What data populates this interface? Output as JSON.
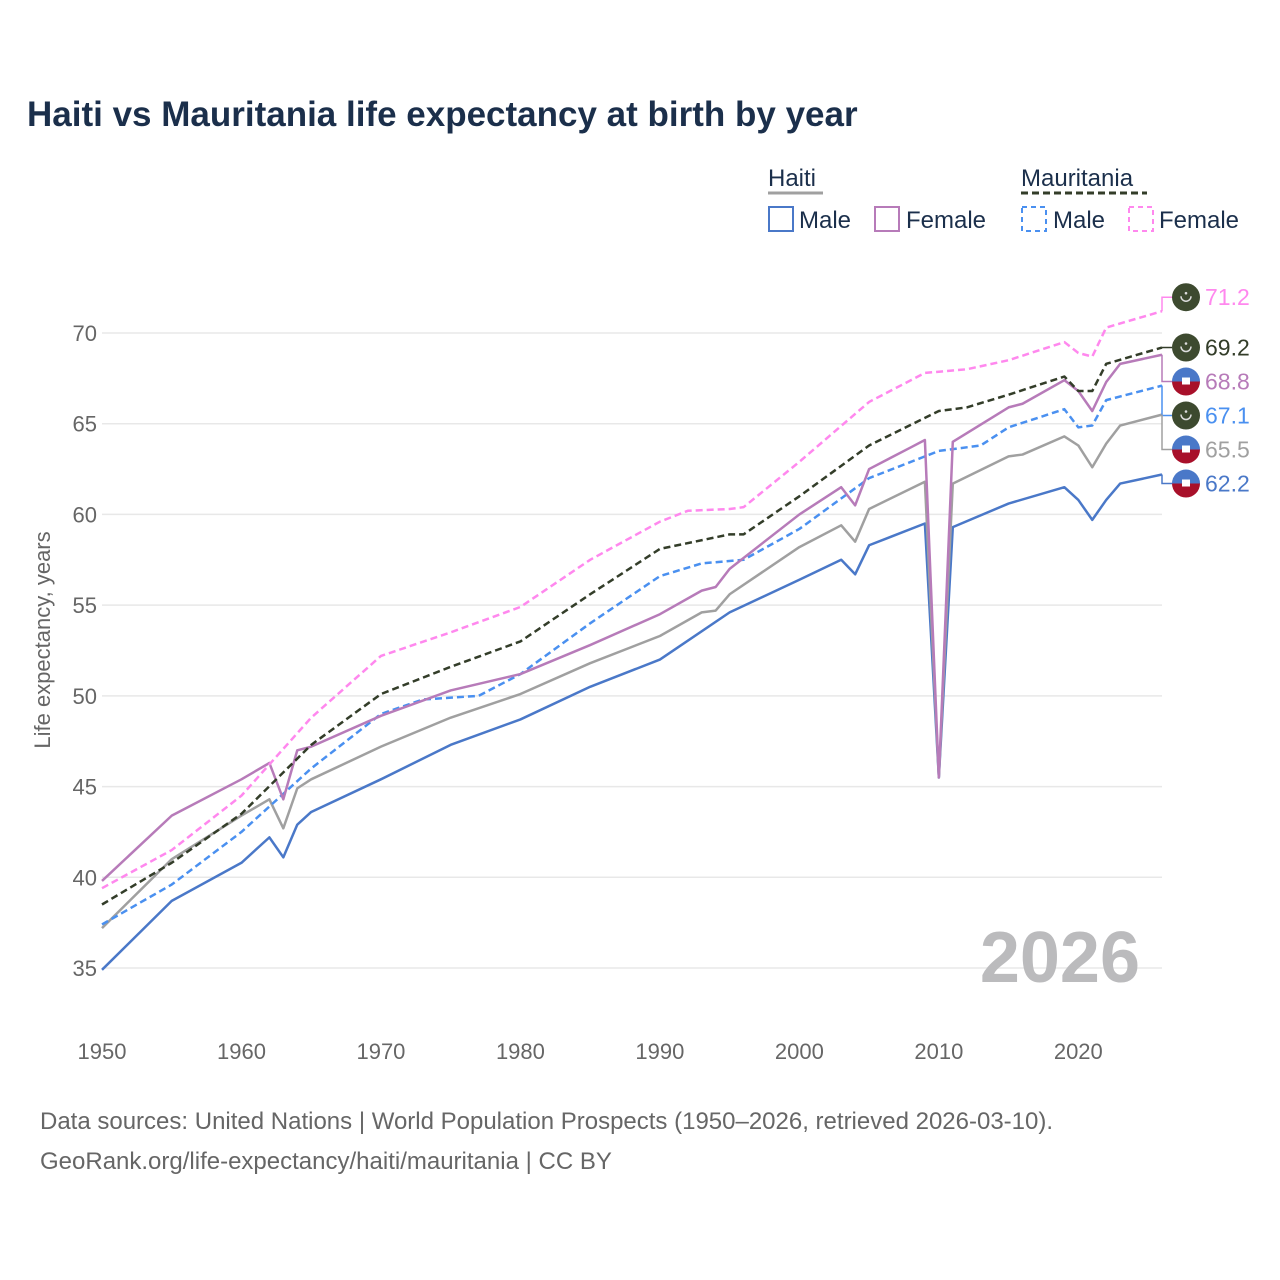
{
  "title": "Haiti vs Mauritania life expectancy at birth by year",
  "sources": [
    "Data sources: United Nations | World Population Prospects (1950–2026, retrieved 2026-03-10).",
    "GeoRank.org/life-expectancy/haiti/mauritania | CC BY"
  ],
  "year_label": "2026",
  "legend": {
    "groups": [
      {
        "name": "Haiti",
        "items": [
          "Male",
          "Female"
        ]
      },
      {
        "name": "Mauritania",
        "items": [
          "Male",
          "Female"
        ]
      }
    ]
  },
  "chart_data": {
    "type": "line",
    "title": "Haiti vs Mauritania life expectancy at birth by year",
    "xlabel": "",
    "ylabel": "Life expectancy, years",
    "xlim": [
      1950,
      2026
    ],
    "ylim": [
      33,
      73
    ],
    "xticks": [
      1950,
      1960,
      1970,
      1980,
      1990,
      2000,
      2010,
      2020
    ],
    "yticks": [
      35,
      40,
      45,
      50,
      55,
      60,
      65,
      70
    ],
    "grid": true,
    "legend_position": "top-right",
    "series": [
      {
        "name": "Mauritania Female",
        "color": "#ff88ee",
        "dash": true,
        "flag": "mauritania",
        "end_label": "71.2",
        "points": [
          [
            1950,
            39.4
          ],
          [
            1955,
            41.5
          ],
          [
            1960,
            44.5
          ],
          [
            1965,
            48.8
          ],
          [
            1970,
            52.2
          ],
          [
            1975,
            53.5
          ],
          [
            1980,
            54.9
          ],
          [
            1985,
            57.5
          ],
          [
            1990,
            59.6
          ],
          [
            1992,
            60.2
          ],
          [
            1995,
            60.3
          ],
          [
            1996,
            60.4
          ],
          [
            2000,
            62.9
          ],
          [
            2005,
            66.2
          ],
          [
            2009,
            67.8
          ],
          [
            2012,
            68.0
          ],
          [
            2015,
            68.5
          ],
          [
            2019,
            69.5
          ],
          [
            2020,
            68.9
          ],
          [
            2021,
            68.7
          ],
          [
            2022,
            70.3
          ],
          [
            2026,
            71.2
          ]
        ]
      },
      {
        "name": "Mauritania",
        "color": "#333d29",
        "dash": true,
        "flag": "mauritania",
        "end_label": "69.2",
        "points": [
          [
            1950,
            38.5
          ],
          [
            1955,
            40.8
          ],
          [
            1960,
            43.5
          ],
          [
            1965,
            47.3
          ],
          [
            1970,
            50.1
          ],
          [
            1975,
            51.6
          ],
          [
            1980,
            53.0
          ],
          [
            1985,
            55.6
          ],
          [
            1990,
            58.1
          ],
          [
            1995,
            58.9
          ],
          [
            1996,
            58.9
          ],
          [
            2000,
            61.0
          ],
          [
            2005,
            63.8
          ],
          [
            2010,
            65.7
          ],
          [
            2012,
            65.9
          ],
          [
            2015,
            66.6
          ],
          [
            2019,
            67.6
          ],
          [
            2020,
            66.8
          ],
          [
            2021,
            66.8
          ],
          [
            2022,
            68.3
          ],
          [
            2026,
            69.2
          ]
        ]
      },
      {
        "name": "Haiti Female",
        "color": "#b77bb9",
        "dash": false,
        "flag": "haiti",
        "end_label": "68.8",
        "points": [
          [
            1950,
            39.8
          ],
          [
            1955,
            43.4
          ],
          [
            1960,
            45.4
          ],
          [
            1962,
            46.3
          ],
          [
            1963,
            44.3
          ],
          [
            1964,
            47.0
          ],
          [
            1965,
            47.2
          ],
          [
            1970,
            48.9
          ],
          [
            1975,
            50.3
          ],
          [
            1980,
            51.2
          ],
          [
            1985,
            52.8
          ],
          [
            1990,
            54.5
          ],
          [
            1993,
            55.8
          ],
          [
            1994,
            56.0
          ],
          [
            1995,
            57.0
          ],
          [
            2000,
            60.0
          ],
          [
            2003,
            61.5
          ],
          [
            2004,
            60.5
          ],
          [
            2005,
            62.5
          ],
          [
            2008,
            63.7
          ],
          [
            2009,
            64.1
          ],
          [
            2010,
            45.5
          ],
          [
            2011,
            64.0
          ],
          [
            2015,
            65.9
          ],
          [
            2016,
            66.1
          ],
          [
            2019,
            67.4
          ],
          [
            2020,
            66.8
          ],
          [
            2021,
            65.7
          ],
          [
            2022,
            67.3
          ],
          [
            2023,
            68.3
          ],
          [
            2026,
            68.8
          ]
        ]
      },
      {
        "name": "Mauritania Male",
        "color": "#4a90f0",
        "dash": true,
        "flag": "mauritania",
        "end_label": "67.1",
        "points": [
          [
            1950,
            37.4
          ],
          [
            1955,
            39.6
          ],
          [
            1960,
            42.5
          ],
          [
            1965,
            46.0
          ],
          [
            1970,
            49.0
          ],
          [
            1973,
            49.8
          ],
          [
            1977,
            50.0
          ],
          [
            1980,
            51.2
          ],
          [
            1985,
            54.0
          ],
          [
            1990,
            56.6
          ],
          [
            1993,
            57.3
          ],
          [
            1996,
            57.5
          ],
          [
            2000,
            59.2
          ],
          [
            2005,
            62.0
          ],
          [
            2010,
            63.5
          ],
          [
            2013,
            63.8
          ],
          [
            2015,
            64.8
          ],
          [
            2019,
            65.8
          ],
          [
            2020,
            64.8
          ],
          [
            2021,
            64.9
          ],
          [
            2022,
            66.3
          ],
          [
            2026,
            67.1
          ]
        ]
      },
      {
        "name": "Haiti",
        "color": "#a0a0a0",
        "dash": false,
        "flag": "haiti",
        "end_label": "65.5",
        "points": [
          [
            1950,
            37.2
          ],
          [
            1955,
            41.0
          ],
          [
            1960,
            43.4
          ],
          [
            1962,
            44.3
          ],
          [
            1963,
            42.7
          ],
          [
            1964,
            44.9
          ],
          [
            1965,
            45.4
          ],
          [
            1970,
            47.2
          ],
          [
            1975,
            48.8
          ],
          [
            1980,
            50.1
          ],
          [
            1985,
            51.8
          ],
          [
            1990,
            53.3
          ],
          [
            1993,
            54.6
          ],
          [
            1994,
            54.7
          ],
          [
            1995,
            55.6
          ],
          [
            2000,
            58.2
          ],
          [
            2003,
            59.4
          ],
          [
            2004,
            58.5
          ],
          [
            2005,
            60.3
          ],
          [
            2009,
            61.8
          ],
          [
            2010,
            45.5
          ],
          [
            2011,
            61.7
          ],
          [
            2015,
            63.2
          ],
          [
            2016,
            63.3
          ],
          [
            2019,
            64.3
          ],
          [
            2020,
            63.8
          ],
          [
            2021,
            62.6
          ],
          [
            2022,
            63.9
          ],
          [
            2023,
            64.9
          ],
          [
            2026,
            65.5
          ]
        ]
      },
      {
        "name": "Haiti Male",
        "color": "#4a78c8",
        "dash": false,
        "flag": "haiti",
        "end_label": "62.2",
        "points": [
          [
            1950,
            34.9
          ],
          [
            1955,
            38.7
          ],
          [
            1960,
            40.8
          ],
          [
            1962,
            42.2
          ],
          [
            1963,
            41.1
          ],
          [
            1964,
            42.9
          ],
          [
            1965,
            43.6
          ],
          [
            1970,
            45.4
          ],
          [
            1975,
            47.3
          ],
          [
            1980,
            48.7
          ],
          [
            1985,
            50.5
          ],
          [
            1990,
            52.0
          ],
          [
            1995,
            54.6
          ],
          [
            2000,
            56.4
          ],
          [
            2003,
            57.5
          ],
          [
            2004,
            56.7
          ],
          [
            2005,
            58.3
          ],
          [
            2009,
            59.5
          ],
          [
            2010,
            45.5
          ],
          [
            2011,
            59.3
          ],
          [
            2015,
            60.6
          ],
          [
            2019,
            61.5
          ],
          [
            2020,
            60.8
          ],
          [
            2021,
            59.7
          ],
          [
            2022,
            60.8
          ],
          [
            2023,
            61.7
          ],
          [
            2026,
            62.2
          ]
        ]
      }
    ]
  }
}
